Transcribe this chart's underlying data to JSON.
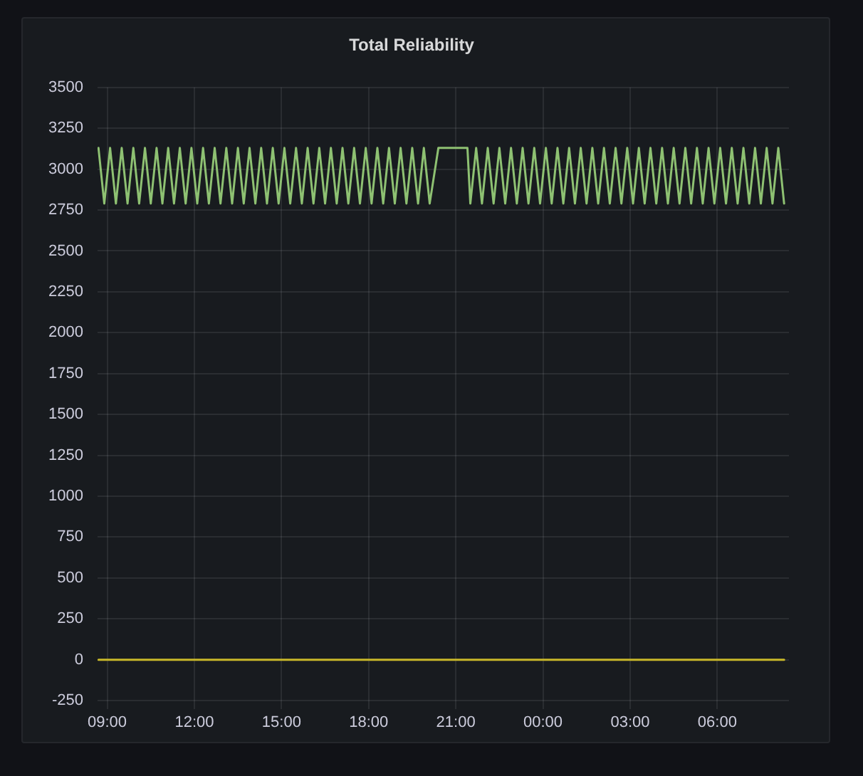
{
  "chart_data": {
    "type": "line",
    "title": "Total Reliability",
    "xlim": [
      "--01-01T08:40",
      "--01-02T08:28"
    ],
    "ylim": [
      -300,
      3500
    ],
    "xticks": [
      {
        "value": "--01-01T09:00",
        "label": "09:00"
      },
      {
        "value": "--01-01T12:00",
        "label": "12:00"
      },
      {
        "value": "--01-01T15:00",
        "label": "15:00"
      },
      {
        "value": "--01-01T18:00",
        "label": "18:00"
      },
      {
        "value": "--01-01T21:00",
        "label": "21:00"
      },
      {
        "value": "--01-02T00:00",
        "label": "00:00"
      },
      {
        "value": "--01-02T03:00",
        "label": "03:00"
      },
      {
        "value": "--01-02T06:00",
        "label": "06:00"
      }
    ],
    "yticks": [
      -250,
      0,
      250,
      500,
      750,
      1000,
      1250,
      1500,
      1750,
      2000,
      2250,
      2500,
      2750,
      3000,
      3250,
      3500
    ],
    "grid": true,
    "legend": false,
    "marker": "none",
    "line_style": "solid",
    "series": [
      {
        "color": "#8ec172",
        "x": [
          "--01-01T08:42",
          "--01-01T08:54",
          "--01-01T09:06",
          "--01-01T09:18",
          "--01-01T09:30",
          "--01-01T09:42",
          "--01-01T09:54",
          "--01-01T10:06",
          "--01-01T10:18",
          "--01-01T10:30",
          "--01-01T10:42",
          "--01-01T10:54",
          "--01-01T11:06",
          "--01-01T11:18",
          "--01-01T11:30",
          "--01-01T11:42",
          "--01-01T11:54",
          "--01-01T12:06",
          "--01-01T12:18",
          "--01-01T12:30",
          "--01-01T12:42",
          "--01-01T12:54",
          "--01-01T13:06",
          "--01-01T13:18",
          "--01-01T13:30",
          "--01-01T13:42",
          "--01-01T13:54",
          "--01-01T14:06",
          "--01-01T14:18",
          "--01-01T14:30",
          "--01-01T14:42",
          "--01-01T14:54",
          "--01-01T15:06",
          "--01-01T15:18",
          "--01-01T15:30",
          "--01-01T15:42",
          "--01-01T15:54",
          "--01-01T16:06",
          "--01-01T16:18",
          "--01-01T16:30",
          "--01-01T16:42",
          "--01-01T16:54",
          "--01-01T17:06",
          "--01-01T17:18",
          "--01-01T17:30",
          "--01-01T17:42",
          "--01-01T17:54",
          "--01-01T18:06",
          "--01-01T18:18",
          "--01-01T18:30",
          "--01-01T18:42",
          "--01-01T18:54",
          "--01-01T19:06",
          "--01-01T19:18",
          "--01-01T19:30",
          "--01-01T19:42",
          "--01-01T19:54",
          "--01-01T20:06",
          "--01-01T20:24",
          "--01-01T21:24",
          "--01-01T21:30",
          "--01-01T21:42",
          "--01-01T21:54",
          "--01-01T22:06",
          "--01-01T22:18",
          "--01-01T22:30",
          "--01-01T22:42",
          "--01-01T22:54",
          "--01-01T23:06",
          "--01-01T23:18",
          "--01-01T23:30",
          "--01-01T23:42",
          "--01-01T23:54",
          "--01-02T00:06",
          "--01-02T00:18",
          "--01-02T00:30",
          "--01-02T00:42",
          "--01-02T00:54",
          "--01-02T01:06",
          "--01-02T01:18",
          "--01-02T01:30",
          "--01-02T01:42",
          "--01-02T01:54",
          "--01-02T02:06",
          "--01-02T02:18",
          "--01-02T02:30",
          "--01-02T02:42",
          "--01-02T02:54",
          "--01-02T03:06",
          "--01-02T03:18",
          "--01-02T03:30",
          "--01-02T03:42",
          "--01-02T03:54",
          "--01-02T04:06",
          "--01-02T04:18",
          "--01-02T04:30",
          "--01-02T04:42",
          "--01-02T04:54",
          "--01-02T05:06",
          "--01-02T05:18",
          "--01-02T05:30",
          "--01-02T05:42",
          "--01-02T05:54",
          "--01-02T06:06",
          "--01-02T06:18",
          "--01-02T06:30",
          "--01-02T06:42",
          "--01-02T06:54",
          "--01-02T07:06",
          "--01-02T07:18",
          "--01-02T07:30",
          "--01-02T07:42",
          "--01-02T07:54",
          "--01-02T08:06",
          "--01-02T08:18"
        ],
        "values": [
          3130,
          2790,
          3130,
          2790,
          3130,
          2790,
          3130,
          2790,
          3130,
          2790,
          3130,
          2790,
          3130,
          2790,
          3130,
          2790,
          3130,
          2790,
          3130,
          2790,
          3130,
          2790,
          3130,
          2790,
          3130,
          2790,
          3130,
          2790,
          3130,
          2790,
          3130,
          2790,
          3130,
          2790,
          3130,
          2790,
          3130,
          2790,
          3130,
          2790,
          3130,
          2790,
          3130,
          2790,
          3130,
          2790,
          3130,
          2790,
          3130,
          2790,
          3130,
          2790,
          3130,
          2790,
          3130,
          2790,
          3130,
          2790,
          3130,
          3130,
          2790,
          3130,
          2790,
          3130,
          2790,
          3130,
          2790,
          3130,
          2790,
          3130,
          2790,
          3130,
          2790,
          3130,
          2790,
          3130,
          2790,
          3130,
          2790,
          3130,
          2790,
          3130,
          2790,
          3130,
          2790,
          3130,
          2790,
          3130,
          2790,
          3130,
          2790,
          3130,
          2790,
          3130,
          2790,
          3130,
          2790,
          3130,
          2790,
          3130,
          2790,
          3130,
          2790,
          3130,
          2790,
          3130,
          2790,
          3130,
          2790,
          3130,
          2790,
          3130,
          2790,
          3130,
          2790
        ]
      },
      {
        "color": "#c9b92a",
        "x": [
          "--01-01T08:42",
          "--01-02T08:18"
        ],
        "values": [
          0,
          0
        ]
      }
    ]
  }
}
